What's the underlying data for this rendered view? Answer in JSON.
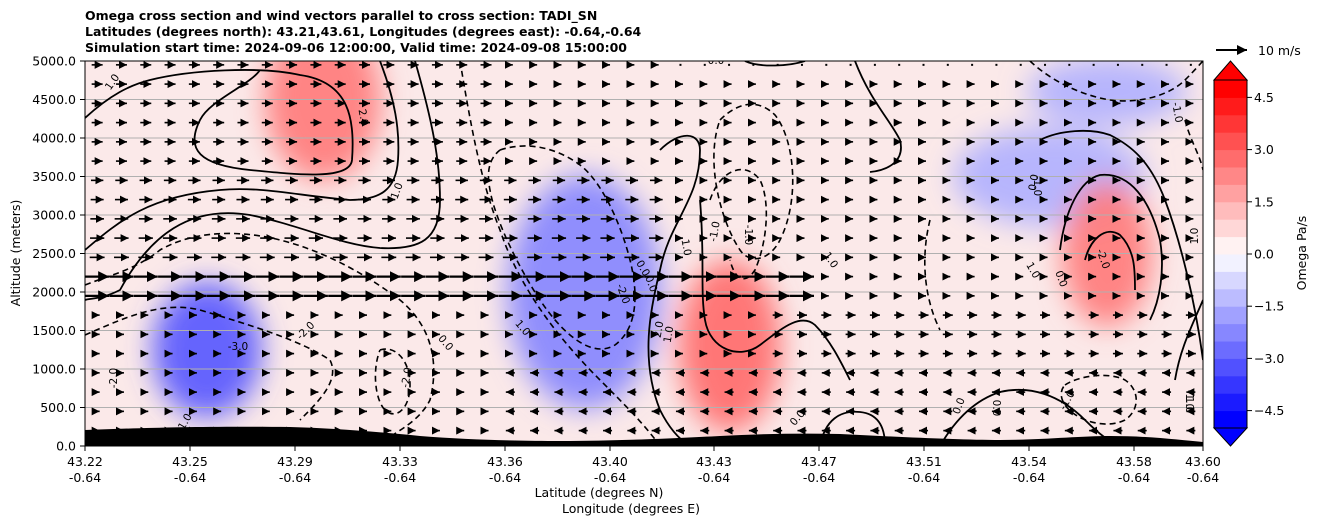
{
  "chart_data": {
    "type": "contourf_quiver",
    "title_lines": [
      "Omega cross section and wind vectors parallel to cross section: TADI_SN",
      "Latitudes (degrees north): 43.21,43.61, Longitudes (degrees east): -0.64,-0.64",
      "Simulation start time: 2024-09-06 12:00:00, Valid time: 2024-09-08 15:00:00"
    ],
    "ylabel": "Altitude (meters)",
    "xlabel_line1": "Latitude (degrees N)",
    "xlabel_line2": "Longitude (degrees E)",
    "ylim": [
      0,
      5000
    ],
    "yticks": [
      "0.0",
      "500.0",
      "1000.0",
      "1500.0",
      "2000.0",
      "2500.0",
      "3000.0",
      "3500.0",
      "4000.0",
      "4500.0",
      "5000.0"
    ],
    "xticks_lat": [
      "43.22",
      "43.25",
      "43.29",
      "43.33",
      "43.36",
      "43.40",
      "43.43",
      "43.47",
      "43.51",
      "43.54",
      "43.58",
      "43.60"
    ],
    "xticks_lon": [
      "-0.64",
      "-0.64",
      "-0.64",
      "-0.64",
      "-0.64",
      "-0.64",
      "-0.64",
      "-0.64",
      "-0.64",
      "-0.64",
      "-0.64",
      "-0.64"
    ],
    "grid_y": true,
    "quiver_key_label": "10 m/s",
    "colorbar": {
      "label": "Omega Pa/s",
      "range": [
        -5,
        5
      ],
      "ticks": [
        "−4.5",
        "−3.0",
        "−1.5",
        "0.0",
        "1.5",
        "3.0",
        "4.5"
      ],
      "extend": "both",
      "colormap": "bwr"
    },
    "omega_field_approx": {
      "note_units": "Pa/s",
      "cells": [
        {
          "lat": 43.3,
          "alt": 4500,
          "value": 2.5
        },
        {
          "lat": 43.26,
          "alt": 1250,
          "value": -3.2
        },
        {
          "lat": 43.39,
          "alt": 2000,
          "value": -2.3
        },
        {
          "lat": 43.44,
          "alt": 1300,
          "value": 2.8
        },
        {
          "lat": 43.55,
          "alt": 3500,
          "value": -1.5
        },
        {
          "lat": 43.57,
          "alt": 2500,
          "value": 2.5
        },
        {
          "lat": 43.57,
          "alt": 4600,
          "value": -1.5
        }
      ]
    },
    "contour_labels": [
      "1.0",
      "2.0",
      "1.0",
      "0.0",
      "1.0",
      "-3.0",
      "-2.0",
      "-2.0",
      "0.0",
      "0.0",
      "-2.0",
      "-1.0",
      "0.0",
      "1.0",
      "-1.0",
      "-2.0",
      "0.0",
      "1.0",
      "2.0",
      "0.0",
      "0.0",
      "1.0",
      "0.0",
      "1.0",
      "-1.0",
      "-1.0",
      "1.0",
      "-2.0",
      "-1.0",
      "0.0",
      "1.0",
      "-1.0",
      "-1.0"
    ],
    "colors": {
      "positive": "#ff4d4d",
      "negative": "#4d4dff",
      "terrain": "#000000",
      "grid": "#b0b0b0"
    }
  }
}
